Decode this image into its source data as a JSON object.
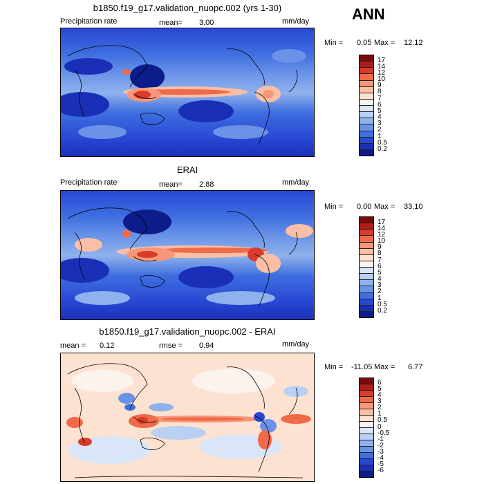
{
  "season": "ANN",
  "panels": [
    {
      "title": "b1850.f19_g17.validation_nuopc.002 (yrs 1-30)",
      "left_label": "Precipitation rate",
      "stat1_label": "mean=",
      "stat1_value": "3.00",
      "units": "mm/day",
      "min_label": "Min =",
      "min_value": "0.05",
      "max_label": "Max =",
      "max_value": "12.12",
      "levels": [
        "17",
        "14",
        "12",
        "10",
        "9",
        "8",
        "7",
        "6",
        "5",
        "4",
        "3",
        "2",
        "1",
        "0.5",
        "0.2"
      ]
    },
    {
      "title": "ERAI",
      "left_label": "Precipitation rate",
      "stat1_label": "mean=",
      "stat1_value": "2.88",
      "units": "mm/day",
      "min_label": "Min =",
      "min_value": "0.00",
      "max_label": "Max =",
      "max_value": "33.10",
      "levels": [
        "17",
        "14",
        "12",
        "10",
        "9",
        "8",
        "7",
        "6",
        "5",
        "4",
        "3",
        "2",
        "1",
        "0.5",
        "0.2"
      ]
    },
    {
      "title": "b1850.f19_g17.validation_nuopc.002 - ERAI",
      "stat1_label": "mean =",
      "stat1_value": "0.12",
      "stat2_label": "rmse =",
      "stat2_value": "0.94",
      "units": "mm/day",
      "min_label": "Min =",
      "min_value": "-11.05",
      "max_label": "Max =",
      "max_value": "6.77",
      "levels": [
        "6",
        "5",
        "4",
        "3",
        "2",
        "1",
        "0.5",
        "0",
        "-0.5",
        "-1",
        "-2",
        "-3",
        "-4",
        "-5",
        "-6"
      ]
    }
  ],
  "colors": {
    "abs_scale": [
      "#7a0a0a",
      "#b01a1a",
      "#d93a2a",
      "#ef6a48",
      "#f7977a",
      "#fbbfa6",
      "#fde2d2",
      "#fbf3ec",
      "#d9e6f7",
      "#b9d0f2",
      "#8fb2ec",
      "#6a93e8",
      "#3f6fe0",
      "#2848d4",
      "#1a2fb8",
      "#0c1c8a"
    ],
    "diff_scale": [
      "#7a0a0a",
      "#b01a1a",
      "#d93a2a",
      "#ef6a48",
      "#f7977a",
      "#fbbfa6",
      "#fde2d2",
      "#fbf3ec",
      "#d9e6f7",
      "#b9d0f2",
      "#8fb2ec",
      "#6a93e8",
      "#3f6fe0",
      "#2848d4",
      "#1a2fb8",
      "#0c1c8a"
    ]
  }
}
